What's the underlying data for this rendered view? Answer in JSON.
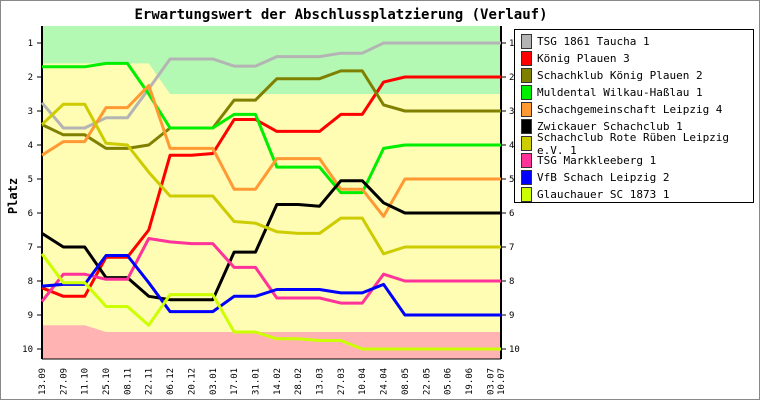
{
  "chart_data": {
    "type": "line",
    "title": "Erwartungswert der Abschlussplatzierung (Verlauf)",
    "xlabel": "",
    "ylabel": "Platz",
    "ylim": [
      0.5,
      10.5
    ],
    "y_inverted": true,
    "yticks": [
      "1",
      "2",
      "3",
      "4",
      "5",
      "6",
      "7",
      "8",
      "9",
      "10"
    ],
    "categories": [
      "13.09",
      "27.09",
      "11.10",
      "25.10",
      "08.11",
      "22.11",
      "06.12",
      "20.12",
      "03.01",
      "17.01",
      "31.01",
      "14.02",
      "28.02",
      "13.03",
      "27.03",
      "10.04",
      "24.04",
      "08.05",
      "22.05",
      "05.06",
      "19.06",
      "03.07",
      "10.07"
    ],
    "x": [
      0,
      1,
      2,
      3,
      4,
      5,
      6,
      7,
      8,
      9,
      10,
      11,
      12,
      13,
      14,
      15,
      16,
      17,
      18,
      19,
      20,
      21,
      21.5
    ],
    "legend_position": "right",
    "bands": {
      "promotion_colors": "#b3f9b3",
      "middle_color": "#fffcb3",
      "relegation_color": "#ffb3b3",
      "promotion_boundary": [
        1.6,
        1.6,
        1.6,
        1.6,
        1.6,
        1.6,
        2.5,
        2.5,
        2.5,
        2.5,
        2.5,
        2.5,
        2.5,
        2.5,
        2.5,
        2.5,
        2.5,
        2.5,
        2.5,
        2.5,
        2.5,
        2.5,
        2.5
      ],
      "relegation_boundary": [
        9.3,
        9.3,
        9.3,
        9.5,
        9.5,
        9.5,
        9.5,
        9.5,
        9.5,
        9.5,
        9.5,
        9.5,
        9.5,
        9.5,
        9.5,
        9.5,
        9.5,
        9.5,
        9.5,
        9.5,
        9.5,
        9.5,
        9.5
      ]
    },
    "series": [
      {
        "name": "TSG 1861 Taucha 1",
        "color": "#b4b4b4",
        "values": [
          2.76,
          3.5,
          3.5,
          3.2,
          3.2,
          2.35,
          1.47,
          1.47,
          1.47,
          1.68,
          1.68,
          1.4,
          1.4,
          1.4,
          1.3,
          1.3,
          1,
          1,
          1,
          1,
          1,
          1,
          1
        ]
      },
      {
        "name": "König Plauen 3",
        "color": "#ff0000",
        "values": [
          8.2,
          8.45,
          8.45,
          7.3,
          7.3,
          6.5,
          4.3,
          4.3,
          4.25,
          3.25,
          3.25,
          3.6,
          3.6,
          3.6,
          3.1,
          3.1,
          2.15,
          2,
          2,
          2,
          2,
          2,
          2
        ]
      },
      {
        "name": "Schachklub König Plauen 2",
        "color": "#808000",
        "values": [
          3.4,
          3.7,
          3.7,
          4.1,
          4.1,
          4.0,
          3.5,
          3.5,
          3.5,
          2.68,
          2.68,
          2.05,
          2.05,
          2.05,
          1.82,
          1.82,
          2.82,
          3,
          3,
          3,
          3,
          3,
          3
        ]
      },
      {
        "name": "Muldental Wilkau-Haßlau 1",
        "color": "#00ee00",
        "values": [
          1.7,
          1.7,
          1.7,
          1.6,
          1.6,
          2.5,
          3.5,
          3.5,
          3.5,
          3.1,
          3.1,
          4.65,
          4.65,
          4.65,
          5.4,
          5.4,
          4.1,
          4,
          4,
          4,
          4,
          4,
          4
        ]
      },
      {
        "name": "Schachgemeinschaft Leipzig 4",
        "color": "#ff9933",
        "values": [
          4.3,
          3.9,
          3.9,
          2.9,
          2.9,
          2.25,
          4.1,
          4.1,
          4.1,
          5.3,
          5.3,
          4.4,
          4.4,
          4.4,
          5.3,
          5.3,
          6.1,
          5,
          5,
          5,
          5,
          5,
          5
        ]
      },
      {
        "name": "Zwickauer Schachclub 1",
        "color": "#000000",
        "values": [
          6.6,
          7.0,
          7.0,
          7.9,
          7.9,
          8.45,
          8.55,
          8.55,
          8.55,
          7.15,
          7.15,
          5.75,
          5.75,
          5.8,
          5.05,
          5.05,
          5.7,
          6,
          6,
          6,
          6,
          6,
          6
        ]
      },
      {
        "name": "Schachclub Rote Rüben Leipzig e.V. 1",
        "color": "#cccc00",
        "values": [
          3.4,
          2.8,
          2.8,
          3.95,
          4.0,
          4.8,
          5.5,
          5.5,
          5.5,
          6.25,
          6.3,
          6.55,
          6.6,
          6.6,
          6.15,
          6.15,
          7.2,
          7,
          7,
          7,
          7,
          7,
          7
        ]
      },
      {
        "name": "TSG Markkleeberg 1",
        "color": "#ff3399",
        "values": [
          8.6,
          7.8,
          7.8,
          7.95,
          7.95,
          6.75,
          6.85,
          6.9,
          6.9,
          7.6,
          7.6,
          8.5,
          8.5,
          8.5,
          8.65,
          8.65,
          7.8,
          8,
          8,
          8,
          8,
          8,
          8
        ]
      },
      {
        "name": "VfB Schach Leipzig 2",
        "color": "#0000ff",
        "values": [
          8.15,
          8.1,
          8.1,
          7.25,
          7.25,
          8.05,
          8.9,
          8.9,
          8.9,
          8.45,
          8.45,
          8.25,
          8.25,
          8.25,
          8.35,
          8.35,
          8.1,
          9,
          9,
          9,
          9,
          9,
          9
        ]
      },
      {
        "name": "Glauchauer SC 1873 1",
        "color": "#ccff00",
        "values": [
          7.2,
          8.05,
          8.05,
          8.75,
          8.75,
          9.3,
          8.4,
          8.4,
          8.4,
          9.5,
          9.5,
          9.7,
          9.7,
          9.75,
          9.75,
          10,
          10,
          10,
          10,
          10,
          10,
          10,
          10
        ]
      }
    ]
  }
}
